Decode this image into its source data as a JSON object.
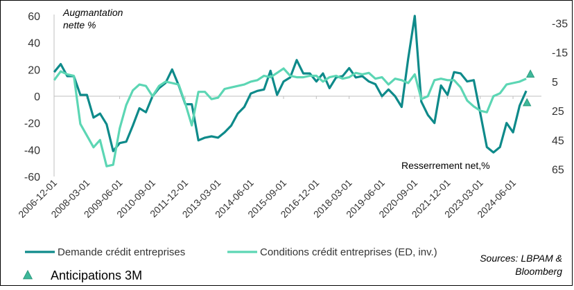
{
  "chart_data": {
    "type": "line",
    "left_axis": {
      "label_lines": [
        "Augmantation",
        "nette %"
      ],
      "range": [
        -60,
        60
      ],
      "ticks": [
        "60",
        "40",
        "20",
        "0",
        "-20",
        "-40",
        "-60"
      ]
    },
    "right_axis": {
      "inverted": true,
      "range": [
        -40,
        70
      ],
      "ticks": [
        "-35",
        "-15",
        "5",
        "25",
        "45",
        "65"
      ]
    },
    "x_tick_labels": [
      "2006-12-01",
      "2008-03-01",
      "2009-06-01",
      "2010-09-01",
      "2011-12-01",
      "2013-03-01",
      "2014-06-01",
      "2015-09-01",
      "2016-12-01",
      "2018-03-01",
      "2019-06-01",
      "2020-09-01",
      "2021-12-01",
      "2023-03-01",
      "2024-06-01"
    ],
    "x_range": [
      2006.917,
      2025.5
    ],
    "series": [
      {
        "name": "Demande crédit entreprises",
        "color": "#0e8a8a",
        "axis": "left",
        "x": [
          2006.92,
          2007.17,
          2007.42,
          2007.67,
          2007.92,
          2008.17,
          2008.42,
          2008.67,
          2008.92,
          2009.17,
          2009.42,
          2009.67,
          2009.92,
          2010.17,
          2010.42,
          2010.67,
          2010.92,
          2011.17,
          2011.42,
          2011.67,
          2011.92,
          2012.17,
          2012.42,
          2012.67,
          2012.92,
          2013.17,
          2013.42,
          2013.67,
          2013.92,
          2014.17,
          2014.42,
          2014.67,
          2014.92,
          2015.17,
          2015.42,
          2015.67,
          2015.92,
          2016.17,
          2016.42,
          2016.67,
          2016.92,
          2017.17,
          2017.42,
          2017.67,
          2017.92,
          2018.17,
          2018.42,
          2018.67,
          2018.92,
          2019.17,
          2019.42,
          2019.67,
          2019.92,
          2020.17,
          2020.42,
          2020.67,
          2020.92,
          2021.17,
          2021.42,
          2021.67,
          2021.92,
          2022.17,
          2022.42,
          2022.67,
          2022.92,
          2023.17,
          2023.42,
          2023.67,
          2023.92,
          2024.17,
          2024.42,
          2024.67,
          2024.92
        ],
        "values": [
          18,
          24,
          15,
          15,
          1,
          1,
          -16,
          -13,
          -21,
          -41,
          -35,
          -34,
          -22,
          -9,
          -12,
          0,
          6,
          10,
          20,
          8,
          -6,
          -6,
          -33,
          -31,
          -30,
          -31,
          -27,
          -22,
          -13,
          -8,
          2,
          4,
          5,
          19,
          1,
          11,
          14,
          27,
          17,
          17,
          11,
          17,
          6,
          14,
          15,
          21,
          14,
          15,
          11,
          9,
          0,
          5,
          0,
          -8,
          28,
          60,
          -4,
          -14,
          -20,
          8,
          1,
          18,
          17,
          11,
          12,
          -13,
          -38,
          -42,
          -38,
          -20,
          -27,
          -7,
          4
        ]
      },
      {
        "name": "Conditions crédit entreprises (ED, inv.)",
        "color": "#5cd6b4",
        "axis": "right",
        "x": [
          2006.92,
          2007.17,
          2007.42,
          2007.67,
          2007.92,
          2008.17,
          2008.42,
          2008.67,
          2008.92,
          2009.17,
          2009.42,
          2009.67,
          2009.92,
          2010.17,
          2010.42,
          2010.67,
          2010.92,
          2011.17,
          2011.42,
          2011.67,
          2011.92,
          2012.17,
          2012.42,
          2012.67,
          2012.92,
          2013.17,
          2013.42,
          2013.67,
          2013.92,
          2014.17,
          2014.42,
          2014.67,
          2014.92,
          2015.17,
          2015.42,
          2015.67,
          2015.92,
          2016.17,
          2016.42,
          2016.67,
          2016.92,
          2017.17,
          2017.42,
          2017.67,
          2017.92,
          2018.17,
          2018.42,
          2018.67,
          2018.92,
          2019.17,
          2019.42,
          2019.67,
          2019.92,
          2020.17,
          2020.42,
          2020.67,
          2020.92,
          2021.17,
          2021.42,
          2021.67,
          2021.92,
          2022.17,
          2022.42,
          2022.67,
          2022.92,
          2023.17,
          2023.42,
          2023.67,
          2023.92,
          2024.17,
          2024.42,
          2024.67,
          2024.92
        ],
        "values": [
          4,
          -2,
          0,
          1,
          34,
          42,
          50,
          45,
          63,
          62,
          37,
          21,
          11,
          7,
          8,
          15,
          8,
          5,
          6,
          7,
          20,
          35,
          12,
          12,
          17,
          16,
          10,
          9,
          8,
          7,
          5,
          4,
          1,
          2,
          -1,
          -4,
          1,
          2,
          2,
          1,
          1,
          5,
          2,
          1,
          3,
          2,
          -1,
          0,
          -1,
          3,
          2,
          7,
          3,
          4,
          6,
          0,
          17,
          15,
          4,
          3,
          4,
          4,
          9,
          18,
          22,
          25,
          26,
          15,
          13,
          7,
          6,
          5,
          3
        ]
      }
    ],
    "anticipations": {
      "name": "Anticipations 3M",
      "color": "#3fb89a",
      "points": [
        {
          "x": 2025.08,
          "axis": "right",
          "value": 0
        },
        {
          "x": 2024.95,
          "axis": "left",
          "value": -5
        }
      ]
    },
    "annotations": {
      "right_axis_label": "Resserrement net,%",
      "source": [
        "Sources: LBPAM &",
        "Bloomberg"
      ]
    }
  }
}
